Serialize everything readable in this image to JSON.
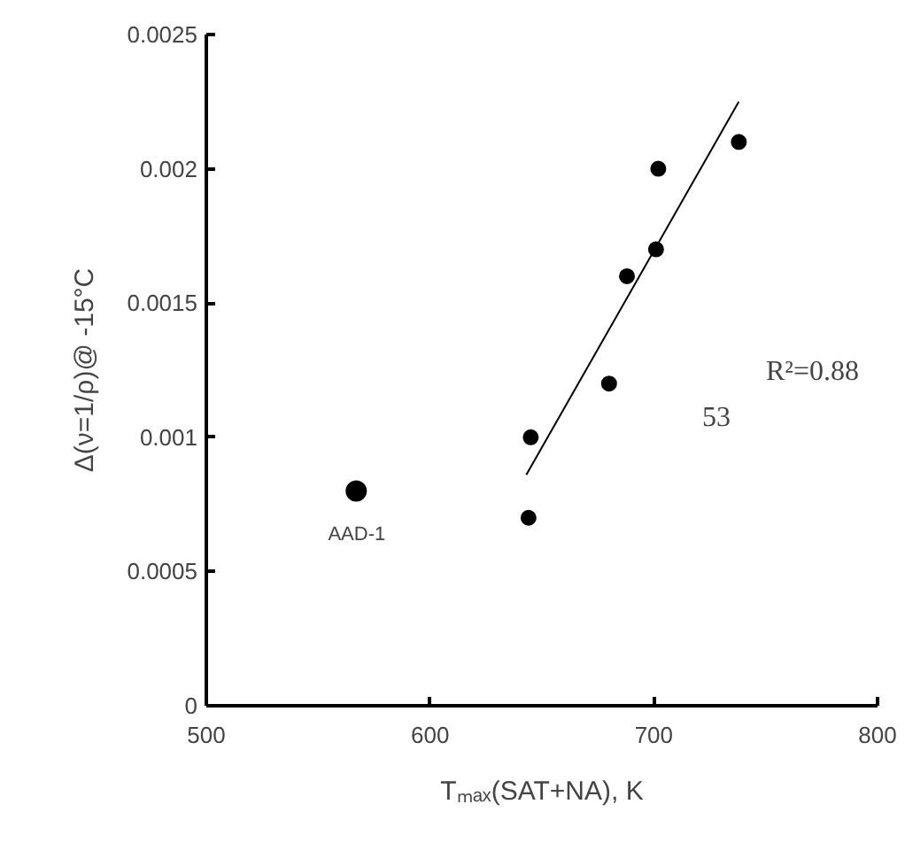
{
  "chart_data": {
    "type": "scatter",
    "xlabel": "Tₘₐₓ(SAT+NA), K",
    "ylabel": "Δ(ν=1/ρ)@ -15°C",
    "series": [
      {
        "color": "#000000",
        "marker": "circle",
        "x": [
          644,
          645,
          680,
          688,
          701,
          702,
          738
        ],
        "values": [
          0.0007,
          0.001,
          0.0012,
          0.0016,
          0.0017,
          0.002,
          0.0021
        ]
      },
      {
        "color": "#000000",
        "marker": "circle",
        "x": [
          567
        ],
        "values": [
          0.0008
        ]
      },
      {
        "type": "line",
        "color": "#000000",
        "marker": "none",
        "x": [
          643,
          738
        ],
        "values": [
          0.00086,
          0.00225
        ]
      }
    ],
    "annotations": [
      "AAD-1",
      "R²=0.88",
      "53"
    ],
    "xlim": [
      500,
      800
    ],
    "ylim": [
      0,
      0.0025
    ],
    "xticks": [
      500,
      600,
      700,
      800
    ],
    "yticks": [
      0,
      0.0005,
      0.001,
      0.0015,
      0.002,
      0.0025
    ],
    "grid": false,
    "line_style": "solid"
  }
}
